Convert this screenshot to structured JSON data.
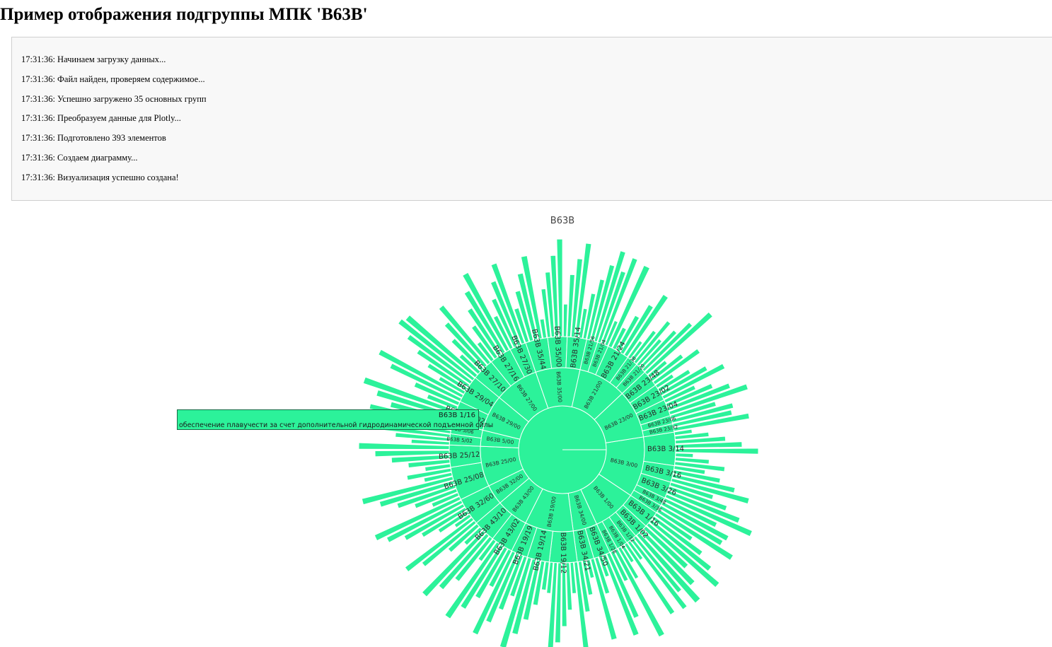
{
  "page": {
    "title": "Пример отображения подгруппы МПК 'B63B'"
  },
  "log": [
    "17:31:36: Начинаем загрузку данных...",
    "17:31:36: Файл найден, проверяем содержимое...",
    "17:31:36: Успешно загружено 35 основных групп",
    "17:31:36: Преобразуем данные для Plotly...",
    "17:31:36: Подготовлено 393 элементов",
    "17:31:36: Создаем диаграмму...",
    "17:31:36: Визуализация успешно создана!"
  ],
  "tooltip": {
    "label": "B63B 1/16",
    "description": "обеспечение плавучести за счет дополнительной гидродинамической подъемной силы"
  },
  "chart_data": {
    "type": "sunburst",
    "title": "B63B",
    "root": "B63B",
    "color": "#2cf29a",
    "edge_color": "#ffffff",
    "groups": [
      {
        "label": "B63B 3/00",
        "value": 30,
        "children": [
          {
            "label": "B63B 3/14",
            "value": 12
          },
          {
            "label": "B63B 3/16",
            "value": 6
          },
          {
            "label": "B63B 3/26",
            "value": 6
          },
          {
            "label": "B63B 3/48",
            "value": 3
          },
          {
            "label": "B63B 3/36",
            "value": 3
          }
        ]
      },
      {
        "label": "B63B 1/00",
        "value": 22,
        "children": [
          {
            "label": "B63B 1/16",
            "value": 6
          },
          {
            "label": "B63B 1/02",
            "value": 5
          },
          {
            "label": "B63B 1/32",
            "value": 4
          },
          {
            "label": "B63B 1/04",
            "value": 4
          },
          {
            "label": "B63B 1/28",
            "value": 3
          }
        ]
      },
      {
        "label": "B63B 34/00",
        "value": 12,
        "children": [
          {
            "label": "B63B 34/50",
            "value": 6
          },
          {
            "label": "B63B 34/21",
            "value": 6
          }
        ]
      },
      {
        "label": "B63B 19/00",
        "value": 24,
        "children": [
          {
            "label": "B63B 19/12",
            "value": 10
          },
          {
            "label": "B63B 19/14",
            "value": 8
          },
          {
            "label": "B63B 19/19",
            "value": 6
          }
        ]
      },
      {
        "label": "B63B 43/00",
        "value": 16,
        "children": [
          {
            "label": "B63B 43/02",
            "value": 8
          },
          {
            "label": "B63B 43/10",
            "value": 8
          }
        ]
      },
      {
        "label": "B63B 32/00",
        "value": 10,
        "children": [
          {
            "label": "B63B 32/60",
            "value": 10
          }
        ]
      },
      {
        "label": "B63B 25/00",
        "value": 20,
        "children": [
          {
            "label": "B63B 25/08",
            "value": 12
          },
          {
            "label": "B63B 25/12",
            "value": 8
          }
        ]
      },
      {
        "label": "B63B 5/00",
        "value": 8,
        "children": [
          {
            "label": "B63B 5/02",
            "value": 4
          },
          {
            "label": "B63B 5/06",
            "value": 4
          }
        ]
      },
      {
        "label": "B63B 29/00",
        "value": 18,
        "children": [
          {
            "label": "B63B 29/02",
            "value": 8
          },
          {
            "label": "B63B 29/04",
            "value": 10
          }
        ]
      },
      {
        "label": "B63B 27/00",
        "value": 22,
        "children": [
          {
            "label": "B63B 27/10",
            "value": 8
          },
          {
            "label": "B63B 27/16",
            "value": 8
          },
          {
            "label": "B63B 27/30",
            "value": 6
          }
        ]
      },
      {
        "label": "B63B 35/00",
        "value": 22,
        "children": [
          {
            "label": "B63B 35/44",
            "value": 8
          },
          {
            "label": "B63B 35/00",
            "value": 7
          },
          {
            "label": "B63B 35/14",
            "value": 7
          }
        ]
      },
      {
        "label": "B63B 21/00",
        "value": 24,
        "children": [
          {
            "label": "B63B 21/56",
            "value": 4
          },
          {
            "label": "B63B 21/04",
            "value": 4
          },
          {
            "label": "B63B 21/24",
            "value": 8
          },
          {
            "label": "B63B 21/38",
            "value": 4
          },
          {
            "label": "B63B 21/20",
            "value": 4
          }
        ]
      },
      {
        "label": "B63B 23/00",
        "value": 24,
        "children": [
          {
            "label": "B63B 23/48",
            "value": 6
          },
          {
            "label": "B63B 23/02",
            "value": 6
          },
          {
            "label": "B63B 23/04",
            "value": 6
          },
          {
            "label": "B63B 23/06",
            "value": 3
          },
          {
            "label": "B63B 23/32",
            "value": 3
          }
        ]
      }
    ]
  }
}
